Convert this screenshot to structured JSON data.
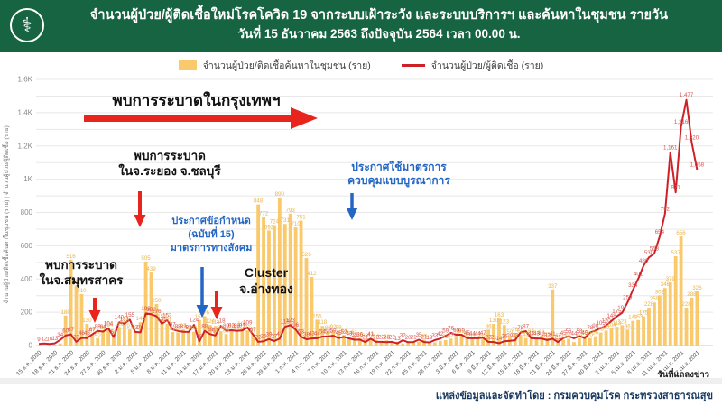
{
  "header": {
    "title_line1": "จำนวนผู้ป่วย/ผู้ติดเชื้อใหม่โรคโควิด 19 จากระบบเฝ้าระวัง และระบบบริการฯ และค้นหาในชุมชน รายวัน",
    "title_line2": "วันที่ 15 ธันวาคม 2563 ถึงปัจจุบัน 2564 เวลา 00.00 น.",
    "logo": "moph-seal",
    "bg_color": "#176442"
  },
  "legend": {
    "community": "จำนวนผู้ป่วย/ติดเชื้อค้นหาในชุมชน (ราย)",
    "confirmed": "จำนวนผู้ป่วย/ผู้ติดเชื้อ (ราย)"
  },
  "chart_data": {
    "type": "bar+line",
    "ylabel": "จำนวนผู้ป่วย/ติดเชื้อค้นหาในชุมชน (ราย) | จำนวนผู้ป่วย/ผู้ติดเชื้อ (ราย)",
    "ylim": [
      0,
      1600
    ],
    "ytick_labels": [
      "0",
      "200",
      "400",
      "600",
      "800",
      "1K",
      "1.2K",
      "1.4K",
      "1.6K"
    ],
    "grid": "horizontal, every 100",
    "legend_position": "top-center",
    "x_start": "15 ธ.ค. 2020",
    "x_end": "17 เม.ย. 2021",
    "x_tick_interval_days": 3,
    "x_tick_labels": [
      "15 ธ.ค. 2020",
      "18 ธ.ค. 2020",
      "21 ธ.ค. 2020",
      "24 ธ.ค. 2020",
      "27 ธ.ค. 2020",
      "30 ธ.ค. 2020",
      "2 ม.ค. 2021",
      "5 ม.ค. 2021",
      "8 ม.ค. 2021",
      "11 ม.ค. 2021",
      "14 ม.ค. 2021",
      "17 ม.ค. 2021",
      "20 ม.ค. 2021",
      "23 ม.ค. 2021",
      "26 ม.ค. 2021",
      "29 ม.ค. 2021",
      "1 ก.พ. 2021",
      "4 ก.พ. 2021",
      "7 ก.พ. 2021",
      "10 ก.พ. 2021",
      "13 ก.พ. 2021",
      "16 ก.พ. 2021",
      "19 ก.พ. 2021",
      "22 ก.พ. 2021",
      "25 ก.พ. 2021",
      "28 ก.พ. 2021",
      "3 มี.ค. 2021",
      "6 มี.ค. 2021",
      "9 มี.ค. 2021",
      "12 มี.ค. 2021",
      "15 มี.ค. 2021",
      "18 มี.ค. 2021",
      "21 มี.ค. 2021",
      "24 มี.ค. 2021",
      "27 มี.ค. 2021",
      "30 มี.ค. 2021",
      "2 เม.ย. 2021",
      "5 เม.ย. 2021",
      "8 เม.ย. 2021",
      "11 เม.ย. 2021",
      "14 เม.ย. 2021",
      "17 เม.ย. 2021"
    ],
    "series": [
      {
        "name": "จำนวนผู้ป่วย/ติดเชื้อค้นหาในชุมชน (ราย)",
        "type": "bar",
        "color": "#F9C96B",
        "label_color": "#EAB44E",
        "values": [
          0,
          0,
          2,
          5,
          13,
          180,
          516,
          360,
          310,
          130,
          67,
          45,
          88,
          104,
          56,
          112,
          128,
          97,
          84,
          140,
          505,
          439,
          250,
          155,
          131,
          82,
          79,
          97,
          88,
          83,
          153,
          176,
          124,
          118,
          86,
          69,
          92,
          89,
          109,
          91,
          67,
          848,
          772,
          692,
          724,
          890,
          731,
          793,
          710,
          751,
          526,
          412,
          155,
          118,
          86,
          92,
          89,
          64,
          54,
          61,
          45,
          38,
          43,
          34,
          21,
          32,
          27,
          24,
          13,
          22,
          20,
          22,
          35,
          21,
          19,
          28,
          33,
          42,
          59,
          65,
          45,
          44,
          43,
          39,
          96,
          130,
          163,
          123,
          59,
          76,
          65,
          45,
          64,
          54,
          61,
          45,
          337,
          42,
          33,
          41,
          21,
          44,
          58,
          45,
          56,
          78,
          90,
          104,
          113,
          123,
          96,
          148,
          153,
          175,
          228,
          259,
          302,
          346,
          379,
          537,
          656,
          228,
          288,
          326
        ]
      },
      {
        "name": "จำนวนผู้ป่วย/ผู้ติดเชื้อ (ราย)",
        "type": "line",
        "color": "#CE2127",
        "label_color": "#D9534F",
        "values": [
          9,
          12,
          10,
          13,
          34,
          60,
          67,
          23,
          46,
          45,
          67,
          88,
          84,
          104,
          51,
          140,
          131,
          155,
          82,
          79,
          193,
          188,
          176,
          131,
          153,
          97,
          88,
          83,
          82,
          124,
          25,
          88,
          69,
          61,
          118,
          89,
          92,
          89,
          91,
          109,
          67,
          22,
          26,
          39,
          27,
          42,
          113,
          123,
          96,
          53,
          38,
          43,
          44,
          54,
          55,
          59,
          45,
          52,
          43,
          35,
          36,
          21,
          41,
          22,
          22,
          20,
          22,
          13,
          32,
          20,
          21,
          35,
          21,
          19,
          33,
          42,
          59,
          76,
          65,
          65,
          45,
          44,
          44,
          47,
          22,
          21,
          14,
          26,
          29,
          32,
          78,
          87,
          44,
          43,
          42,
          33,
          41,
          21,
          45,
          56,
          44,
          58,
          45,
          78,
          90,
          105,
          120,
          148,
          175,
          197,
          259,
          334,
          401,
          480,
          530,
          553,
          654,
          792,
          1161,
          921,
          1316,
          1477,
          1220,
          1058
        ]
      }
    ],
    "highlight_values": [
      "516",
      "505",
      "439",
      "250",
      "848",
      "890",
      "793",
      "731",
      "751",
      "692",
      "710",
      "526",
      "412",
      "337",
      "163",
      "656",
      "537",
      "792",
      "921",
      "1,058",
      "1,161",
      "1,316",
      "1,477"
    ],
    "annotations": {
      "bkk": "พบการระบาดในกรุงเทพฯ",
      "rayong_line1": "พบการระบาด",
      "rayong_line2": "ในจ.ระยอง จ.ชลบุรี",
      "samut_line1": "พบการระบาด",
      "samut_line2": "ในจ.สมุทรสาคร",
      "decree_line1": "ประกาศข้อกำหนด",
      "decree_line2": "(ฉบับที่ 15)",
      "decree_line3": "มาตรการทางสังคม",
      "cluster_line1": "Cluster",
      "cluster_line2": "จ.อ่างทอง",
      "integrated_line1": "ประกาศใช้มาตรการ",
      "integrated_line2": "ควบคุมแบบบูรณาการ",
      "arrow_red_color": "#E8251D",
      "arrow_blue_color": "#2466C4"
    },
    "x_axis_note": "วันที่แถลงข่าว"
  },
  "footer": {
    "source": "แหล่งข้อมูลและจัดทำโดย : กรมควบคุมโรค กระทรวงสาธารณสุข"
  }
}
